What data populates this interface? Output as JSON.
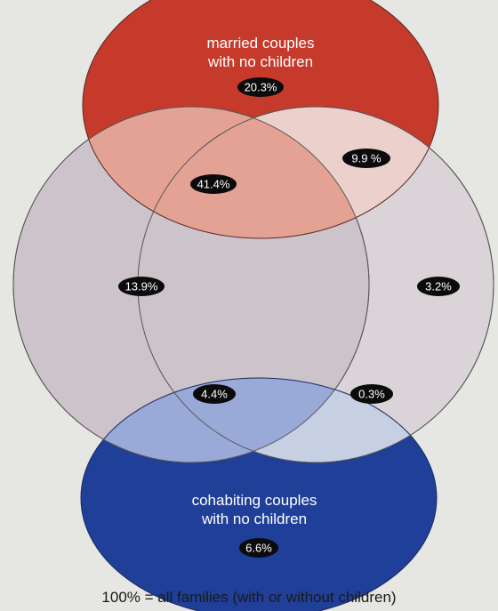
{
  "diagram": {
    "colors": {
      "background": "#e6e6e3",
      "married_fill": "#c63a2c",
      "cohabiting_fill": "#1f3f98",
      "left_circle": "#cdc3ca",
      "right_circle": "#dad4d8",
      "pill": "#0b0b0b"
    },
    "married_title": [
      "married couples",
      "with no children"
    ],
    "cohabiting_title": [
      "cohabiting couples",
      "with no children"
    ],
    "values": {
      "married_only": "20.3%",
      "married_right": "9.9 %",
      "married_left": "41.4%",
      "left_only": "13.9%",
      "right_only": "3.2%",
      "cohab_left": "4.4%",
      "cohab_right": "0.3%",
      "cohab_only": "6.6%"
    },
    "footnote": "100% = all families (with or without children)"
  }
}
